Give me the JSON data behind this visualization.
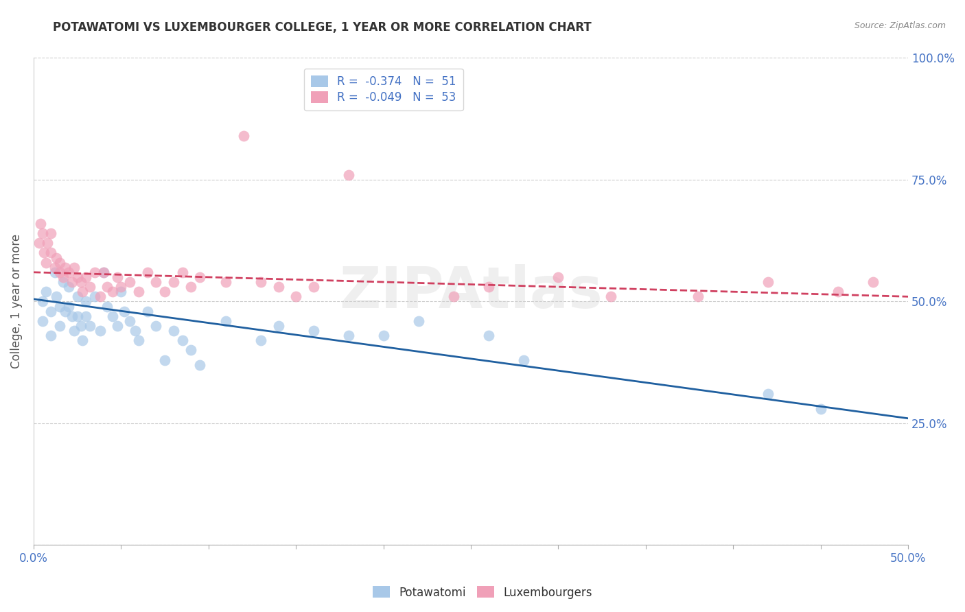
{
  "title": "POTAWATOMI VS LUXEMBOURGER COLLEGE, 1 YEAR OR MORE CORRELATION CHART",
  "source_text": "Source: ZipAtlas.com",
  "ylabel": "College, 1 year or more",
  "xlim": [
    0.0,
    0.5
  ],
  "ylim": [
    0.0,
    1.0
  ],
  "xticks": [
    0.0,
    0.05,
    0.1,
    0.15,
    0.2,
    0.25,
    0.3,
    0.35,
    0.4,
    0.45,
    0.5
  ],
  "xticklabels_show": [
    "0.0%",
    "50.0%"
  ],
  "yticks": [
    0.0,
    0.25,
    0.5,
    0.75,
    1.0
  ],
  "right_yticklabels": [
    "",
    "25.0%",
    "50.0%",
    "75.0%",
    "100.0%"
  ],
  "blue_color": "#A8C8E8",
  "pink_color": "#F0A0B8",
  "blue_line_color": "#2060A0",
  "pink_line_color": "#D04060",
  "legend_blue_label": "R =  -0.374   N =  51",
  "legend_pink_label": "R =  -0.049   N =  53",
  "watermark": "ZIPAtlas",
  "potawatomi_x": [
    0.005,
    0.005,
    0.007,
    0.01,
    0.01,
    0.012,
    0.013,
    0.015,
    0.015,
    0.017,
    0.018,
    0.02,
    0.02,
    0.022,
    0.023,
    0.025,
    0.025,
    0.027,
    0.028,
    0.03,
    0.03,
    0.032,
    0.035,
    0.038,
    0.04,
    0.042,
    0.045,
    0.048,
    0.05,
    0.052,
    0.055,
    0.058,
    0.06,
    0.065,
    0.07,
    0.075,
    0.08,
    0.085,
    0.09,
    0.095,
    0.11,
    0.13,
    0.14,
    0.16,
    0.18,
    0.2,
    0.22,
    0.26,
    0.28,
    0.42,
    0.45
  ],
  "potawatomi_y": [
    0.5,
    0.46,
    0.52,
    0.48,
    0.43,
    0.56,
    0.51,
    0.49,
    0.45,
    0.54,
    0.48,
    0.53,
    0.49,
    0.47,
    0.44,
    0.51,
    0.47,
    0.45,
    0.42,
    0.5,
    0.47,
    0.45,
    0.51,
    0.44,
    0.56,
    0.49,
    0.47,
    0.45,
    0.52,
    0.48,
    0.46,
    0.44,
    0.42,
    0.48,
    0.45,
    0.38,
    0.44,
    0.42,
    0.4,
    0.37,
    0.46,
    0.42,
    0.45,
    0.44,
    0.43,
    0.43,
    0.46,
    0.43,
    0.38,
    0.31,
    0.28
  ],
  "luxembourger_x": [
    0.003,
    0.004,
    0.005,
    0.006,
    0.007,
    0.008,
    0.01,
    0.01,
    0.012,
    0.013,
    0.015,
    0.015,
    0.017,
    0.018,
    0.02,
    0.022,
    0.023,
    0.025,
    0.027,
    0.028,
    0.03,
    0.032,
    0.035,
    0.038,
    0.04,
    0.042,
    0.045,
    0.048,
    0.05,
    0.055,
    0.06,
    0.065,
    0.07,
    0.075,
    0.08,
    0.085,
    0.09,
    0.095,
    0.11,
    0.12,
    0.13,
    0.14,
    0.15,
    0.16,
    0.18,
    0.24,
    0.26,
    0.3,
    0.33,
    0.38,
    0.42,
    0.46,
    0.48
  ],
  "luxembourger_y": [
    0.62,
    0.66,
    0.64,
    0.6,
    0.58,
    0.62,
    0.6,
    0.64,
    0.57,
    0.59,
    0.56,
    0.58,
    0.55,
    0.57,
    0.56,
    0.54,
    0.57,
    0.55,
    0.54,
    0.52,
    0.55,
    0.53,
    0.56,
    0.51,
    0.56,
    0.53,
    0.52,
    0.55,
    0.53,
    0.54,
    0.52,
    0.56,
    0.54,
    0.52,
    0.54,
    0.56,
    0.53,
    0.55,
    0.54,
    0.84,
    0.54,
    0.53,
    0.51,
    0.53,
    0.76,
    0.51,
    0.53,
    0.55,
    0.51,
    0.51,
    0.54,
    0.52,
    0.54
  ],
  "figsize": [
    14.06,
    8.92
  ],
  "dpi": 100,
  "blue_trend_x0": 0.0,
  "blue_trend_y0": 0.505,
  "blue_trend_x1": 0.5,
  "blue_trend_y1": 0.26,
  "pink_trend_x0": 0.0,
  "pink_trend_y0": 0.56,
  "pink_trend_x1": 0.5,
  "pink_trend_y1": 0.51
}
